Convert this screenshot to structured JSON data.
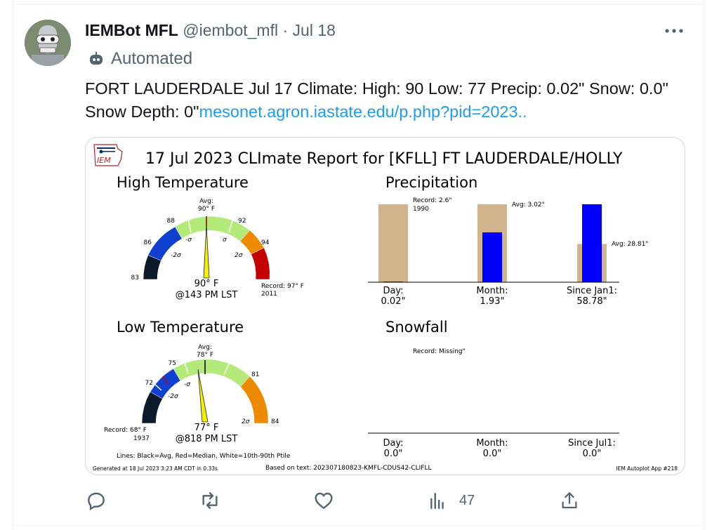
{
  "tweet": {
    "display_name": "IEMBot MFL",
    "handle": "@iembot_mfl",
    "separator": "·",
    "date": "Jul 18",
    "automated_label": "Automated",
    "text_body": "FORT LAUDERDALE Jul 17 Climate: High: 90 Low: 77 Precip: 0.02\" Snow: 0.0\" Snow Depth: 0\"",
    "link_text": "mesonet.agron.iastate.edu/p.php?pid=2023..",
    "views_count": "47"
  },
  "report": {
    "logo_text": "IEM",
    "title": "17 Jul 2023 CLImate Report for [KFLL] FT LAUDERDALE/HOLLY",
    "high": {
      "heading": "High Temperature",
      "avg_label": "Avg:",
      "avg_value": "90° F",
      "tick_83": "83",
      "tick_86": "86",
      "tick_88": "88",
      "tick_92": "92",
      "tick_94": "94",
      "sig_neg2": "-2σ",
      "sig_neg1": "-σ",
      "sig_pos1": "σ",
      "sig_pos2": "2σ",
      "observed": "90° F",
      "time": "@143 PM LST",
      "record_label": "Record: 97° F",
      "record_year": "2011"
    },
    "low": {
      "heading": "Low Temperature",
      "avg_label": "Avg:",
      "avg_value": "78° F",
      "tick_72": "72",
      "tick_75": "75",
      "tick_81": "81",
      "tick_84": "84",
      "sig_neg2": "-2σ",
      "sig_neg1": "-σ",
      "sig_pos2": "2σ",
      "observed": "77° F",
      "time": "@818 PM LST",
      "record_label": "Record: 68° F",
      "record_year": "1937",
      "lines_note": "Lines: Black=Avg, Red=Median, White=10th-90th Ptile"
    },
    "precip": {
      "heading": "Precipitation",
      "record_label": "Record: 2.6\"",
      "record_year": "1990",
      "avg_month_label": "Avg: 3.02\"",
      "avg_jan1_label": "Avg: 28.81\"",
      "cat_day": "Day:",
      "val_day": "0.02\"",
      "cat_month": "Month:",
      "val_month": "1.93\"",
      "cat_jan1": "Since Jan1:",
      "val_jan1": "58.78\""
    },
    "snow": {
      "heading": "Snowfall",
      "record_label": "Record: Missing\"",
      "cat_day": "Day:",
      "val_day": "0.0\"",
      "cat_month": "Month:",
      "val_month": "0.0\"",
      "cat_jul1": "Since Jul1:",
      "val_jul1": "0.0\""
    },
    "footer_generated": "Generated at 18 Jul 2023 3:23 AM CDT in 0.33s",
    "footer_based": "Based on text: 202307180823-KMFL-CDUS42-CLIFLL",
    "footer_app": "IEM Autoplot App #218"
  },
  "chart_data": [
    {
      "type": "bar",
      "title": "Precipitation",
      "categories": [
        "Day",
        "Month",
        "Since Jan1"
      ],
      "series": [
        {
          "name": "Record/Avg",
          "values": [
            2.6,
            3.02,
            28.81
          ]
        },
        {
          "name": "Observed",
          "values": [
            0.02,
            1.93,
            58.78
          ]
        }
      ]
    },
    {
      "type": "bar",
      "title": "Snowfall",
      "categories": [
        "Day",
        "Month",
        "Since Jul1"
      ],
      "series": [
        {
          "name": "Observed",
          "values": [
            0.0,
            0.0,
            0.0
          ]
        }
      ]
    }
  ],
  "colors": {
    "link": "#1d9bf0",
    "secondary": "#536471",
    "obs_bar": "#0000ff",
    "avg_bar": "#d2b48c"
  }
}
